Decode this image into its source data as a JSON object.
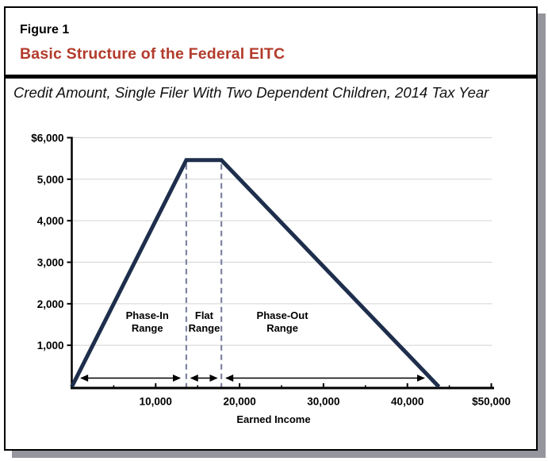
{
  "page": {
    "background": "#ffffff",
    "card_border_color": "#000000",
    "card_shadow_color": "#95959d"
  },
  "header": {
    "figure_label": "Figure 1",
    "title": "Basic Structure of the Federal EITC",
    "title_color": "#b23b2b",
    "subtitle": "Credit Amount, Single Filer With Two Dependent Children, 2014 Tax Year"
  },
  "chart_data": {
    "type": "line",
    "xlabel": "Earned Income",
    "xlim": [
      0,
      50000
    ],
    "ylim": [
      0,
      6000
    ],
    "grid": "horizontal-light-gray",
    "grid_color": "#d9d9d9",
    "line_color": "#1e2e4c",
    "guide_color": "#7e84a2",
    "axis_color": "#000000",
    "x_major_ticks": [
      {
        "value": 10000,
        "label": "10,000"
      },
      {
        "value": 20000,
        "label": "20,000"
      },
      {
        "value": 30000,
        "label": "30,000"
      },
      {
        "value": 40000,
        "label": "40,000"
      },
      {
        "value": 50000,
        "label": "$50,000"
      }
    ],
    "x_minor_tick_step": 5000,
    "y_ticks": [
      {
        "value": 1000,
        "label": "1,000"
      },
      {
        "value": 2000,
        "label": "2,000"
      },
      {
        "value": 3000,
        "label": "3,000"
      },
      {
        "value": 4000,
        "label": "4,000"
      },
      {
        "value": 5000,
        "label": "5,000"
      },
      {
        "value": 6000,
        "label": "$6,000"
      }
    ],
    "series": [
      {
        "points": [
          [
            0,
            0
          ],
          [
            13650,
            5460
          ],
          [
            17830,
            5460
          ],
          [
            43756,
            0
          ]
        ]
      }
    ],
    "reference_lines_x": [
      13650,
      17830
    ],
    "range_annotations": [
      {
        "lines": [
          "Phase-In",
          "Range"
        ],
        "label_x": 9000,
        "arrow_from": 1100,
        "arrow_to": 12900
      },
      {
        "lines": [
          "Flat",
          "Range"
        ],
        "label_x": 15780,
        "arrow_from": 14200,
        "arrow_to": 17300
      },
      {
        "lines": [
          "Phase-Out",
          "Range"
        ],
        "label_x": 25100,
        "arrow_from": 18400,
        "arrow_to": 42000
      }
    ]
  }
}
